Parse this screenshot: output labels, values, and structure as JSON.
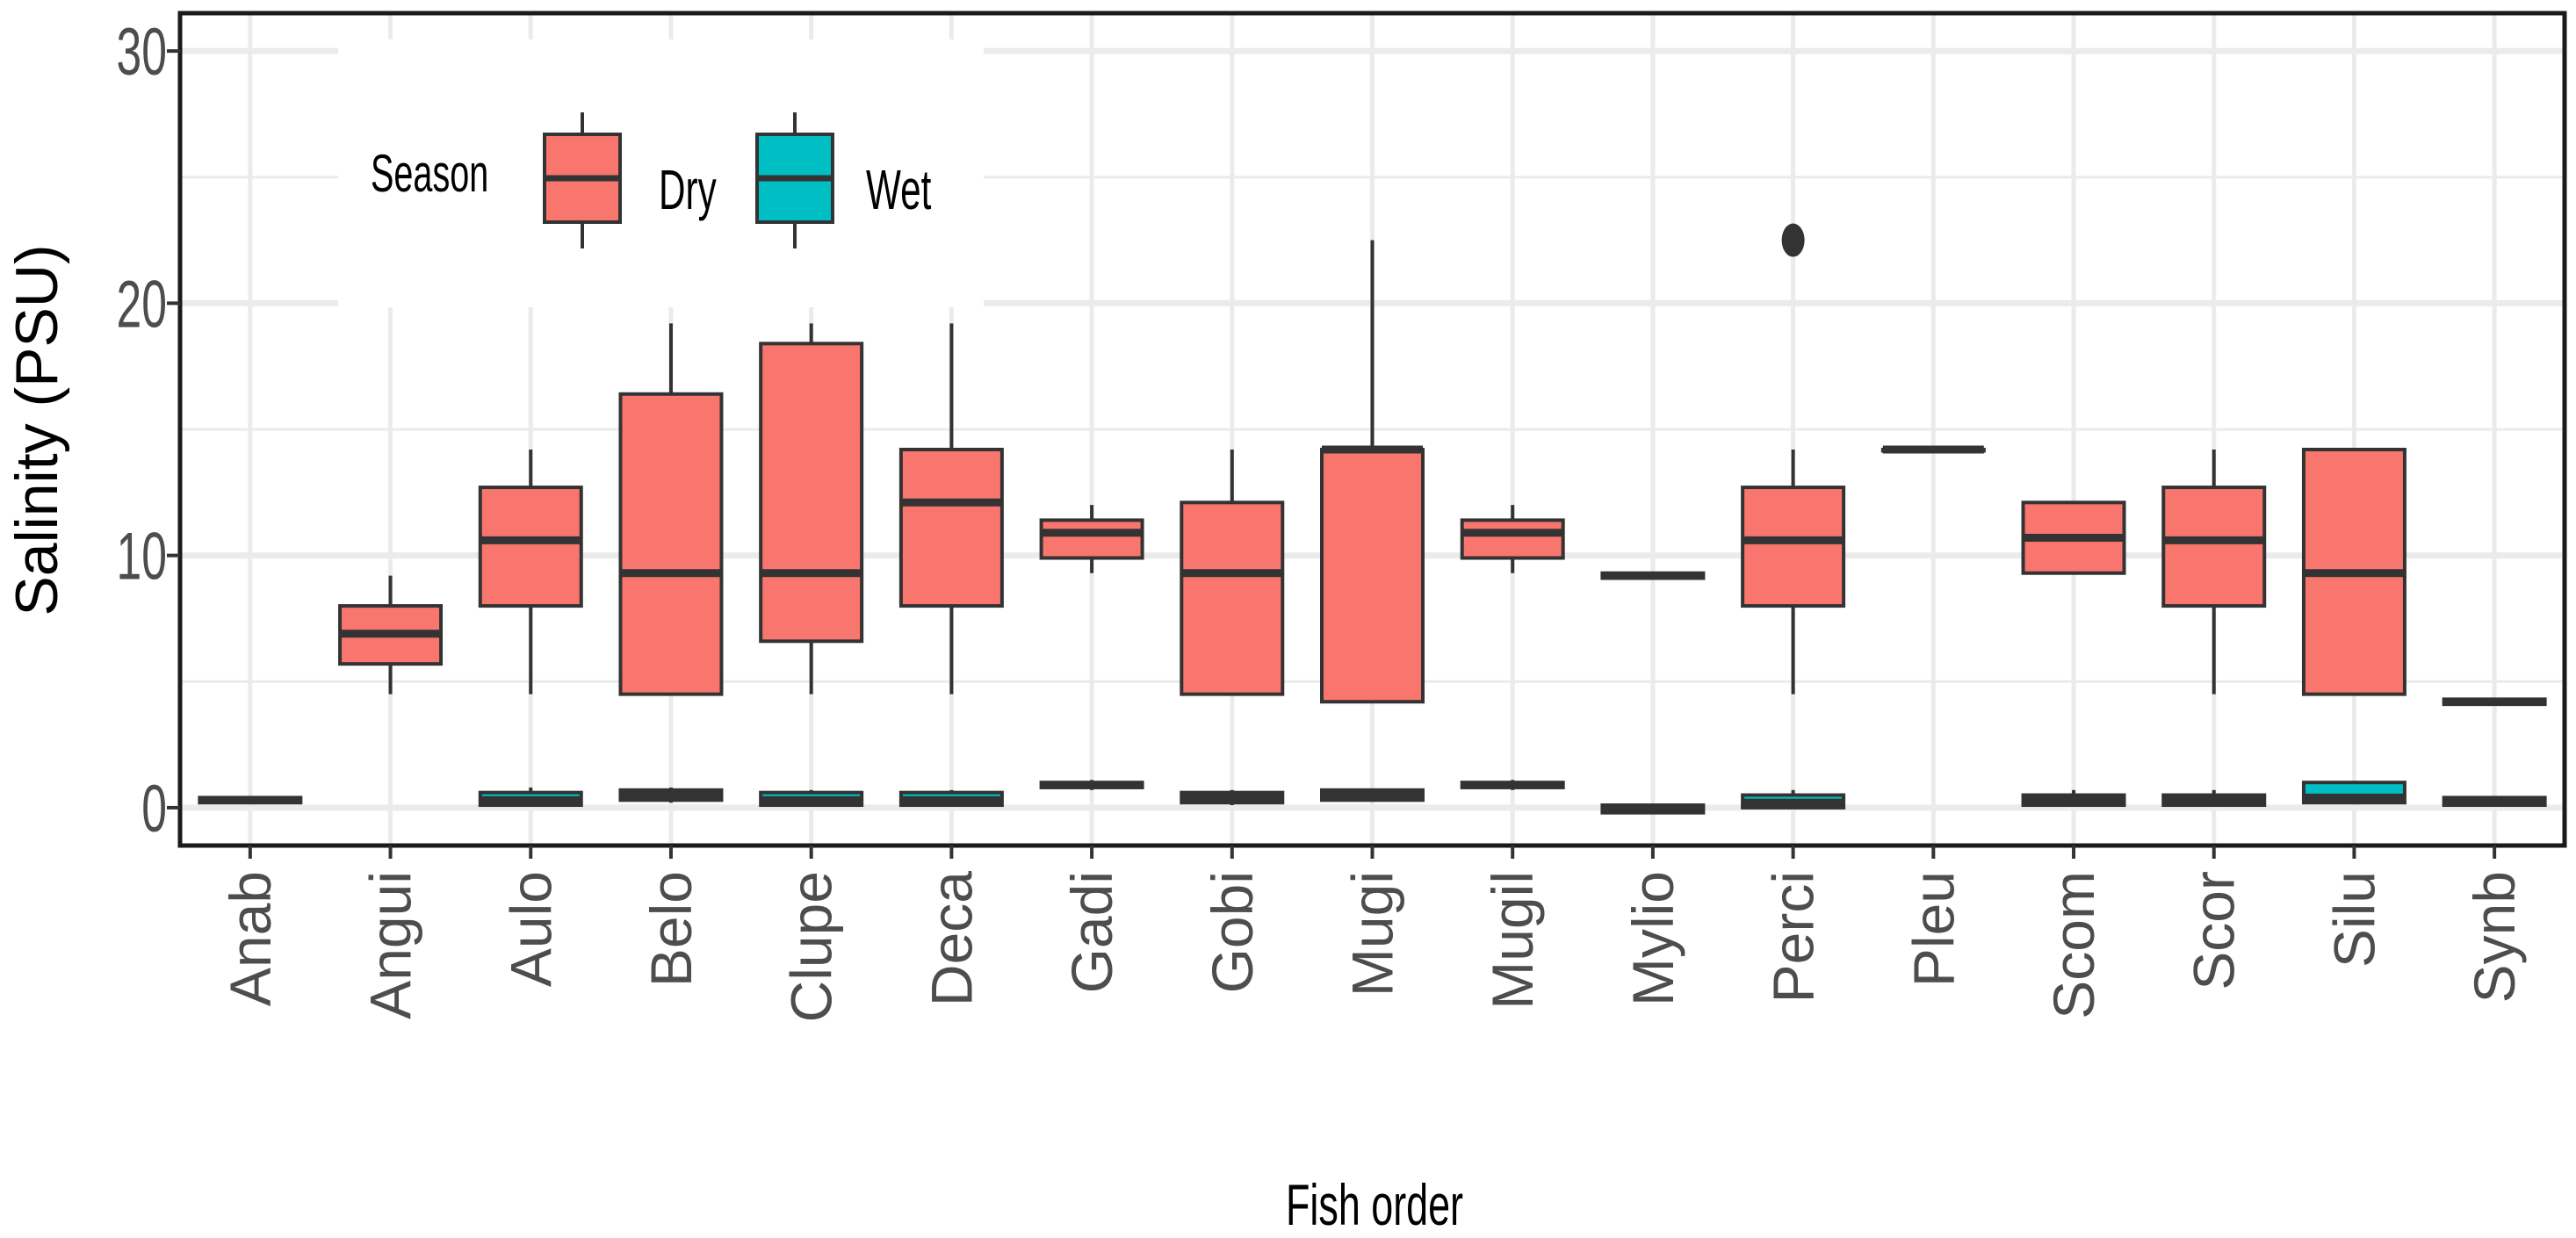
{
  "chart_data": {
    "type": "boxplot",
    "xlabel": "Fish order",
    "ylabel": "Salinity (PSU)",
    "ylim": [
      -1.5,
      31.5
    ],
    "yticks": [
      0,
      10,
      20,
      30
    ],
    "categories": [
      "Anab",
      "Angui",
      "Aulo",
      "Belo",
      "Clupe",
      "Deca",
      "Gadi",
      "Gobi",
      "Mugi",
      "Mugil",
      "Mylio",
      "Perci",
      "Pleu",
      "Scom",
      "Scor",
      "Silu",
      "Synb"
    ],
    "legend": {
      "title": "Season",
      "position": "top-left",
      "entries": [
        {
          "label": "Dry",
          "color": "#F8766D"
        },
        {
          "label": "Wet",
          "color": "#00BFC4"
        }
      ]
    },
    "series": [
      {
        "name": "Dry",
        "color": "#F8766D",
        "boxes": [
          null,
          {
            "min": 4.5,
            "q1": 5.7,
            "median": 6.9,
            "q3": 8.0,
            "max": 9.2
          },
          {
            "min": 4.5,
            "q1": 8.0,
            "median": 10.6,
            "q3": 12.7,
            "max": 14.2
          },
          {
            "min": 4.5,
            "q1": 4.5,
            "median": 9.3,
            "q3": 16.4,
            "max": 19.2
          },
          {
            "min": 4.5,
            "q1": 6.6,
            "median": 9.3,
            "q3": 18.4,
            "max": 19.2
          },
          {
            "min": 4.5,
            "q1": 8.0,
            "median": 12.1,
            "q3": 14.2,
            "max": 19.2
          },
          {
            "min": 9.3,
            "q1": 9.9,
            "median": 10.9,
            "q3": 11.4,
            "max": 12.0
          },
          {
            "min": 4.5,
            "q1": 4.5,
            "median": 9.3,
            "q3": 12.1,
            "max": 14.2
          },
          {
            "min": 4.2,
            "q1": 4.2,
            "median": 14.2,
            "q3": 14.2,
            "max": 22.5
          },
          {
            "min": 9.3,
            "q1": 9.9,
            "median": 10.9,
            "q3": 11.4,
            "max": 12.0
          },
          {
            "min": 9.1,
            "q1": 9.1,
            "median": 9.2,
            "q3": 9.3,
            "max": 9.3
          },
          {
            "min": 4.5,
            "q1": 8.0,
            "median": 10.6,
            "q3": 12.7,
            "max": 14.2,
            "outliers": [
              22.5
            ]
          },
          {
            "min": 14.2,
            "q1": 14.2,
            "median": 14.2,
            "q3": 14.2,
            "max": 14.2
          },
          {
            "min": 9.3,
            "q1": 9.3,
            "median": 10.7,
            "q3": 12.1,
            "max": 12.1
          },
          {
            "min": 4.5,
            "q1": 8.0,
            "median": 10.6,
            "q3": 12.7,
            "max": 14.2
          },
          {
            "min": 4.5,
            "q1": 4.5,
            "median": 9.3,
            "q3": 14.2,
            "max": 14.2
          },
          {
            "min": 4.1,
            "q1": 4.1,
            "median": 4.2,
            "q3": 4.3,
            "max": 4.3
          }
        ]
      },
      {
        "name": "Wet",
        "color": "#00BFC4",
        "boxes": [
          {
            "min": 0.2,
            "q1": 0.2,
            "median": 0.3,
            "q3": 0.4,
            "max": 0.4
          },
          null,
          {
            "min": 0.1,
            "q1": 0.1,
            "median": 0.3,
            "q3": 0.6,
            "max": 0.8
          },
          {
            "min": 0.2,
            "q1": 0.3,
            "median": 0.5,
            "q3": 0.7,
            "max": 0.8
          },
          {
            "min": 0.1,
            "q1": 0.1,
            "median": 0.3,
            "q3": 0.6,
            "max": 0.7
          },
          {
            "min": 0.1,
            "q1": 0.1,
            "median": 0.3,
            "q3": 0.6,
            "max": 0.7
          },
          {
            "min": 0.7,
            "q1": 0.8,
            "median": 0.9,
            "q3": 1.0,
            "max": 1.1
          },
          {
            "min": 0.1,
            "q1": 0.2,
            "median": 0.4,
            "q3": 0.6,
            "max": 0.7
          },
          {
            "min": 0.3,
            "q1": 0.3,
            "median": 0.5,
            "q3": 0.7,
            "max": 0.7
          },
          {
            "min": 0.7,
            "q1": 0.8,
            "median": 0.9,
            "q3": 1.0,
            "max": 1.1
          },
          {
            "min": -0.2,
            "q1": -0.2,
            "median": 0.0,
            "q3": 0.1,
            "max": 0.1
          },
          {
            "min": 0.0,
            "q1": 0.0,
            "median": 0.2,
            "q3": 0.5,
            "max": 0.7
          },
          null,
          {
            "min": 0.1,
            "q1": 0.1,
            "median": 0.3,
            "q3": 0.5,
            "max": 0.7
          },
          {
            "min": 0.1,
            "q1": 0.1,
            "median": 0.3,
            "q3": 0.5,
            "max": 0.7
          },
          {
            "min": 0.2,
            "q1": 0.2,
            "median": 0.4,
            "q3": 1.0,
            "max": 1.0
          },
          {
            "min": 0.1,
            "q1": 0.1,
            "median": 0.3,
            "q3": 0.4,
            "max": 0.4
          }
        ]
      }
    ]
  }
}
